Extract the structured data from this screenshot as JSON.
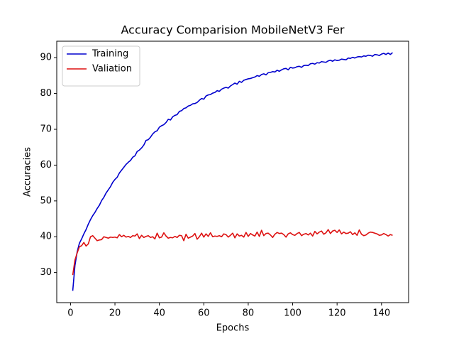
{
  "chart_data": {
    "type": "line",
    "title": "Accuracy Comparision MobileNetV3 Fer",
    "x_label": "Epochs",
    "y_label": "Accuracies",
    "x": [
      1,
      2,
      3,
      4,
      5,
      6,
      7,
      8,
      9,
      10,
      11,
      12,
      13,
      14,
      15,
      16,
      17,
      18,
      19,
      20,
      21,
      22,
      23,
      24,
      25,
      26,
      27,
      28,
      29,
      30,
      31,
      32,
      33,
      34,
      35,
      36,
      37,
      38,
      39,
      40,
      41,
      42,
      43,
      44,
      45,
      46,
      47,
      48,
      49,
      50,
      51,
      52,
      53,
      54,
      55,
      56,
      57,
      58,
      59,
      60,
      61,
      62,
      63,
      64,
      65,
      66,
      67,
      68,
      69,
      70,
      71,
      72,
      73,
      74,
      75,
      76,
      77,
      78,
      79,
      80,
      81,
      82,
      83,
      84,
      85,
      86,
      87,
      88,
      89,
      90,
      91,
      92,
      93,
      94,
      95,
      96,
      97,
      98,
      99,
      100,
      101,
      102,
      103,
      104,
      105,
      106,
      107,
      108,
      109,
      110,
      111,
      112,
      113,
      114,
      115,
      116,
      117,
      118,
      119,
      120,
      121,
      122,
      123,
      124,
      125,
      126,
      127,
      128,
      129,
      130,
      131,
      132,
      133,
      134,
      135,
      136,
      137,
      138,
      139,
      140,
      141,
      142,
      143,
      144,
      145
    ],
    "series": [
      {
        "name": "Training",
        "color": "#0000cd",
        "values": [
          24.9,
          32.0,
          35.8,
          38.2,
          39.4,
          40.8,
          42.0,
          43.5,
          44.8,
          45.9,
          46.8,
          47.9,
          48.8,
          50.1,
          51.0,
          52.2,
          53.1,
          54.0,
          55.2,
          56.0,
          56.6,
          57.8,
          58.6,
          59.4,
          60.2,
          60.8,
          61.3,
          62.2,
          62.6,
          63.8,
          64.2,
          64.8,
          65.6,
          66.9,
          67.1,
          67.8,
          68.7,
          69.3,
          69.6,
          70.6,
          71.0,
          71.3,
          71.9,
          72.8,
          72.6,
          73.5,
          73.9,
          74.1,
          75.0,
          75.2,
          75.8,
          76.0,
          76.5,
          76.7,
          77.1,
          77.2,
          77.5,
          78.1,
          78.6,
          78.4,
          79.3,
          79.6,
          79.7,
          80.1,
          80.3,
          80.8,
          80.6,
          81.2,
          81.5,
          81.7,
          81.5,
          82.1,
          82.5,
          82.9,
          82.6,
          83.4,
          83.1,
          83.7,
          83.9,
          84.1,
          84.2,
          84.4,
          84.6,
          85.0,
          84.8,
          85.3,
          85.5,
          85.2,
          85.8,
          85.9,
          86.1,
          86.0,
          86.5,
          86.2,
          86.6,
          86.9,
          87.0,
          86.6,
          87.3,
          87.1,
          87.2,
          87.5,
          87.6,
          87.3,
          87.8,
          87.9,
          87.8,
          88.3,
          88.4,
          88.2,
          88.6,
          88.5,
          88.9,
          88.8,
          88.7,
          89.1,
          89.3,
          89.0,
          89.4,
          89.2,
          89.3,
          89.6,
          89.5,
          89.4,
          89.9,
          89.8,
          90.1,
          89.9,
          90.2,
          90.3,
          90.2,
          90.5,
          90.4,
          90.7,
          90.6,
          90.4,
          90.9,
          90.8,
          90.6,
          91.0,
          91.2,
          90.9,
          91.3,
          90.9,
          91.4
        ]
      },
      {
        "name": "Valiation",
        "color": "#dd1111",
        "values": [
          29.3,
          33.5,
          35.5,
          37.2,
          37.5,
          38.4,
          37.4,
          38.0,
          40.0,
          40.3,
          39.6,
          38.9,
          39.1,
          39.2,
          40.0,
          39.8,
          39.6,
          39.9,
          39.8,
          39.9,
          39.7,
          40.6,
          40.0,
          40.4,
          39.9,
          40.1,
          39.8,
          40.3,
          40.2,
          40.8,
          39.5,
          40.4,
          39.8,
          40.1,
          40.3,
          39.8,
          40.0,
          39.4,
          41.0,
          39.7,
          39.9,
          41.1,
          40.2,
          39.6,
          39.8,
          39.7,
          40.1,
          39.8,
          40.4,
          40.3,
          38.9,
          40.7,
          39.6,
          39.9,
          40.2,
          40.9,
          39.3,
          40.0,
          41.0,
          39.9,
          40.8,
          40.1,
          41.1,
          40.0,
          40.2,
          40.1,
          40.3,
          40.0,
          40.8,
          40.6,
          39.9,
          40.4,
          41.0,
          39.7,
          40.8,
          40.2,
          40.4,
          39.9,
          41.2,
          40.1,
          40.9,
          40.5,
          40.2,
          41.3,
          40.1,
          41.8,
          40.3,
          40.9,
          41.0,
          40.5,
          39.8,
          40.7,
          41.2,
          40.9,
          41.0,
          40.6,
          39.9,
          40.8,
          41.1,
          40.6,
          40.4,
          40.9,
          41.2,
          40.3,
          40.7,
          40.9,
          40.5,
          41.0,
          40.2,
          41.5,
          40.8,
          41.3,
          41.6,
          40.7,
          41.1,
          42.0,
          40.9,
          41.6,
          41.8,
          41.2,
          41.9,
          40.8,
          41.3,
          40.9,
          41.0,
          41.4,
          40.6,
          41.1,
          40.4,
          41.9,
          40.7,
          40.3,
          40.5,
          41.0,
          41.3,
          41.2,
          41.0,
          40.8,
          40.4,
          40.5,
          40.9,
          40.6,
          40.2,
          40.6,
          40.4
        ]
      }
    ],
    "xlim": [
      -6.2,
      152.2
    ],
    "xticks": [
      0,
      20,
      40,
      60,
      80,
      100,
      120,
      140
    ],
    "ylim": [
      21.6,
      94.6
    ],
    "yticks": [
      30,
      40,
      50,
      60,
      70,
      80,
      90
    ],
    "legend": "upper left"
  }
}
